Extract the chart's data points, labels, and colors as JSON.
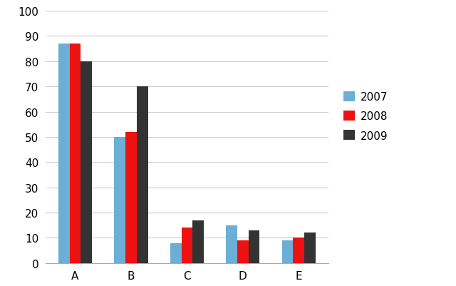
{
  "categories": [
    "A",
    "B",
    "C",
    "D",
    "E"
  ],
  "series": {
    "2007": [
      87,
      50,
      8,
      15,
      9
    ],
    "2008": [
      87,
      52,
      14,
      9,
      10
    ],
    "2009": [
      80,
      70,
      17,
      13,
      12
    ]
  },
  "colors": {
    "2007": "#6BAED6",
    "2008": "#EE1111",
    "2009": "#333333"
  },
  "ylim": [
    0,
    100
  ],
  "yticks": [
    0,
    10,
    20,
    30,
    40,
    50,
    60,
    70,
    80,
    90,
    100
  ],
  "legend_labels": [
    "2007",
    "2008",
    "2009"
  ],
  "background_color": "#FFFFFF",
  "grid_color": "#CCCCCC",
  "bar_width": 0.2,
  "figsize": [
    6.4,
    4.02
  ],
  "dpi": 100
}
